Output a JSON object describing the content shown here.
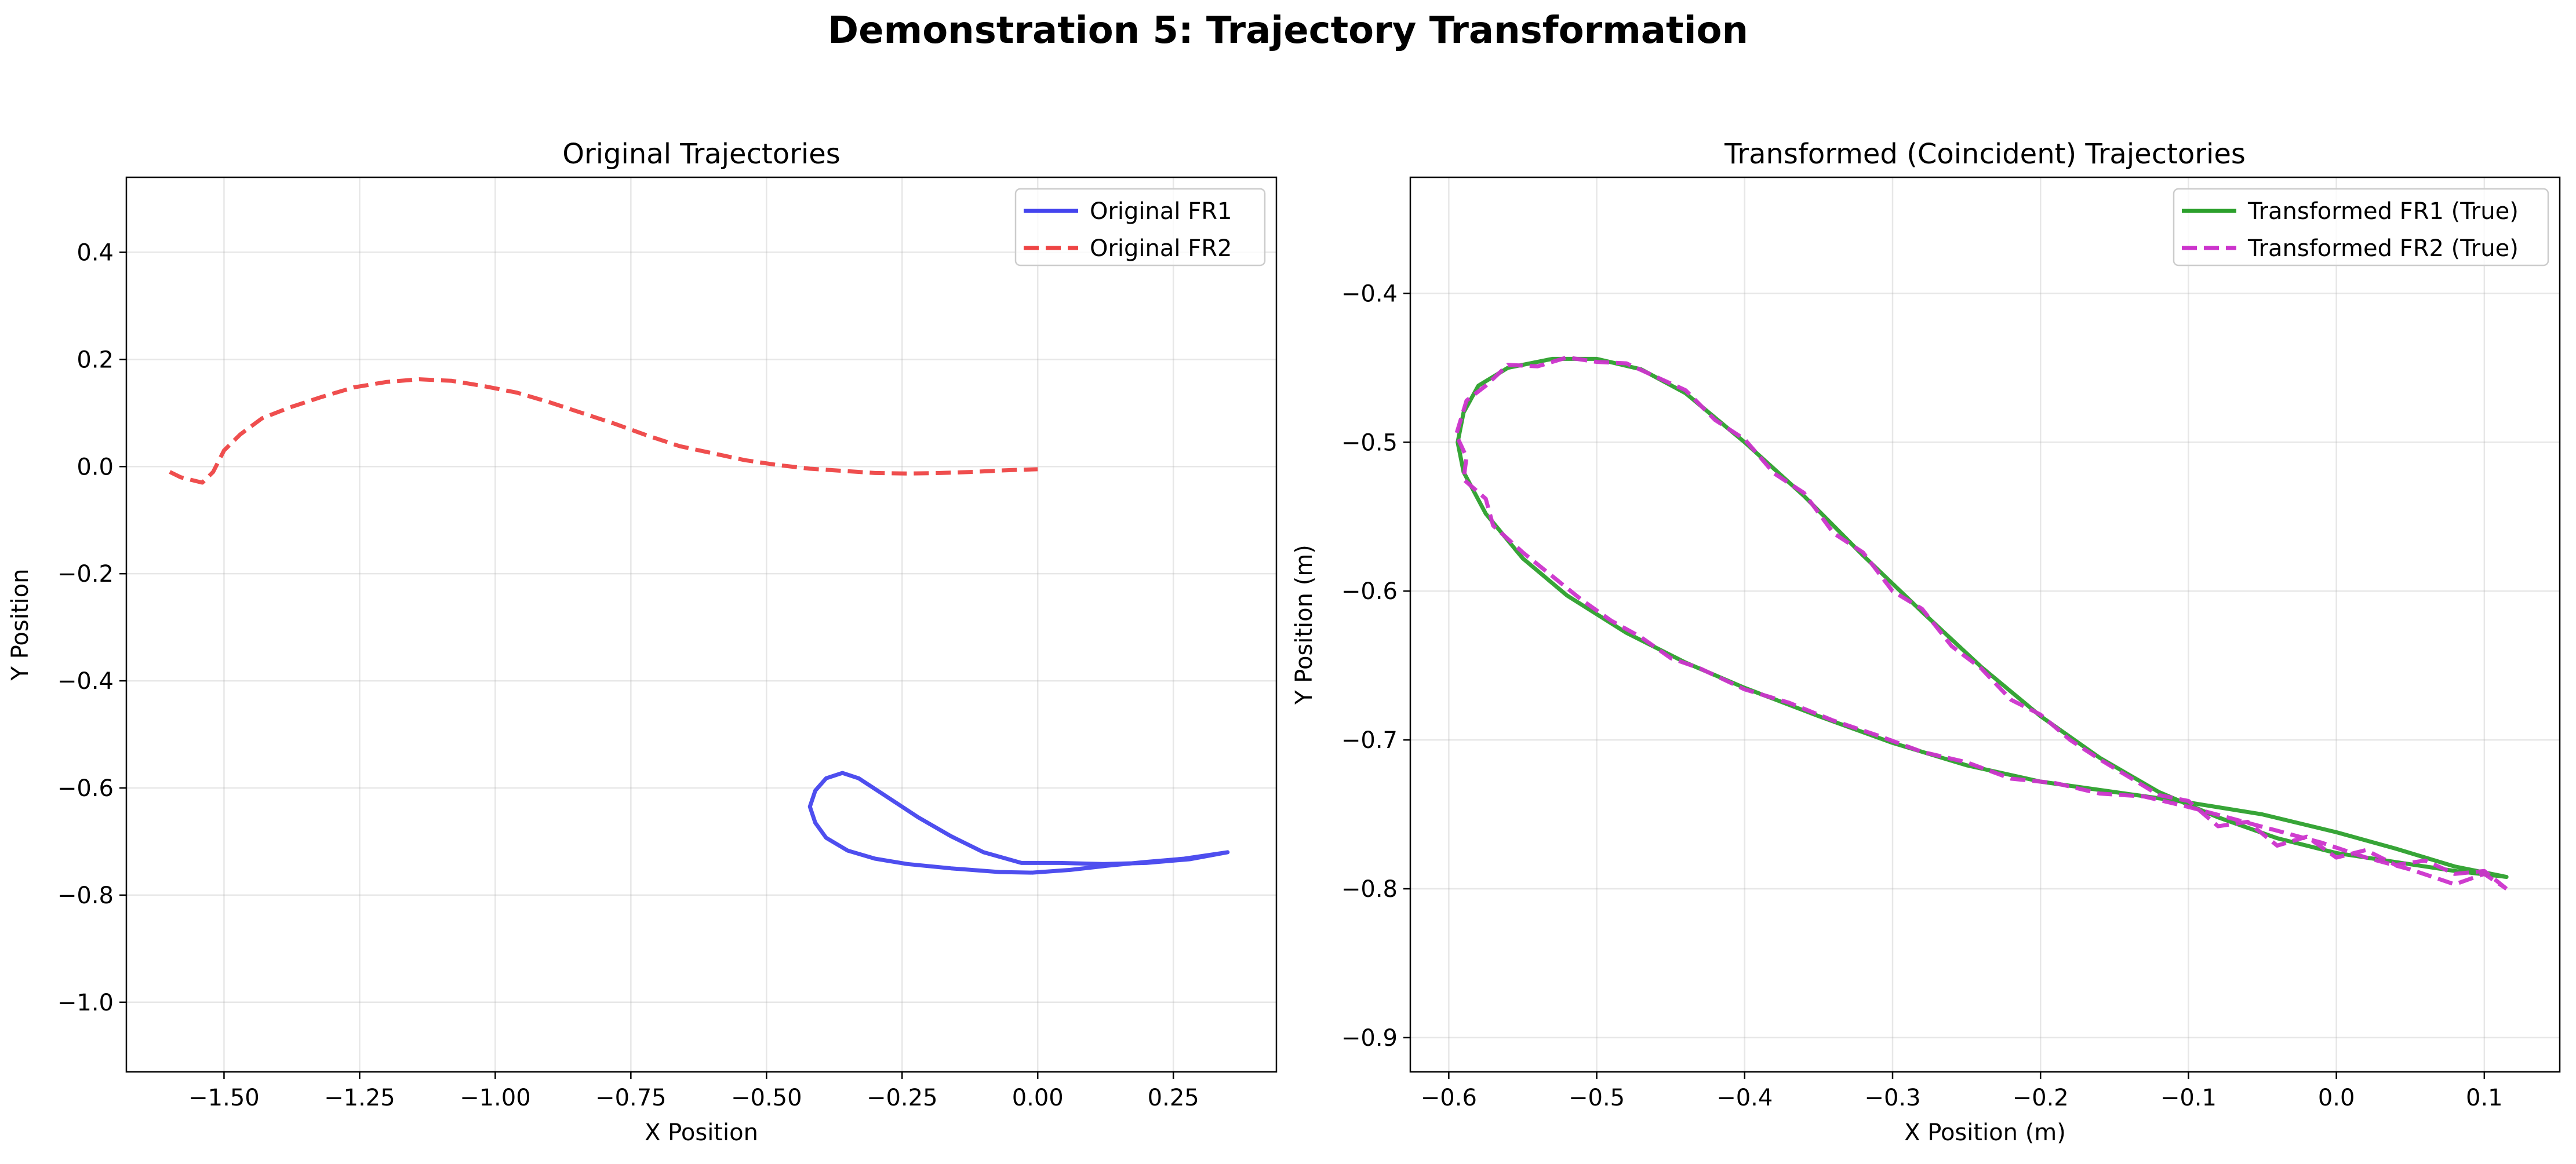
{
  "suptitle": "Demonstration 5: Trajectory Transformation",
  "chart_data": [
    {
      "type": "line",
      "title": "Original Trajectories",
      "xlabel": "X Position",
      "ylabel": "Y Position",
      "xlim": [
        -1.68,
        0.44
      ],
      "ylim": [
        -1.13,
        0.54
      ],
      "xticks": [
        -1.5,
        -1.25,
        -1.0,
        -0.75,
        -0.5,
        -0.25,
        0.0,
        0.25
      ],
      "xtick_labels": [
        "−1.50",
        "−1.25",
        "−1.00",
        "−0.75",
        "−0.50",
        "−0.25",
        "0.00",
        "0.25"
      ],
      "yticks": [
        0.4,
        0.2,
        0.0,
        -0.2,
        -0.4,
        -0.6,
        -0.8,
        -1.0
      ],
      "ytick_labels": [
        "0.4",
        "0.2",
        "0.0",
        "−0.2",
        "−0.4",
        "−0.6",
        "−0.8",
        "−1.0"
      ],
      "grid": true,
      "legend_position": "top-right",
      "series": [
        {
          "name": "Original FR1",
          "color": "#4444ee",
          "style": "solid",
          "points": [
            [
              0.35,
              -0.72
            ],
            [
              0.28,
              -0.733
            ],
            [
              0.2,
              -0.74
            ],
            [
              0.12,
              -0.742
            ],
            [
              0.04,
              -0.74
            ],
            [
              -0.03,
              -0.74
            ],
            [
              -0.1,
              -0.72
            ],
            [
              -0.16,
              -0.69
            ],
            [
              -0.22,
              -0.655
            ],
            [
              -0.28,
              -0.615
            ],
            [
              -0.33,
              -0.582
            ],
            [
              -0.36,
              -0.572
            ],
            [
              -0.39,
              -0.582
            ],
            [
              -0.41,
              -0.605
            ],
            [
              -0.42,
              -0.635
            ],
            [
              -0.41,
              -0.665
            ],
            [
              -0.39,
              -0.693
            ],
            [
              -0.35,
              -0.717
            ],
            [
              -0.3,
              -0.732
            ],
            [
              -0.24,
              -0.742
            ],
            [
              -0.16,
              -0.75
            ],
            [
              -0.07,
              -0.757
            ],
            [
              -0.01,
              -0.758
            ],
            [
              0.06,
              -0.753
            ],
            [
              0.13,
              -0.745
            ],
            [
              0.2,
              -0.738
            ],
            [
              0.27,
              -0.732
            ],
            [
              0.35,
              -0.72
            ]
          ]
        },
        {
          "name": "Original FR2",
          "color": "#ee4444",
          "style": "dashed",
          "points": [
            [
              -1.6,
              -0.01
            ],
            [
              -1.58,
              -0.02
            ],
            [
              -1.56,
              -0.025
            ],
            [
              -1.54,
              -0.03
            ],
            [
              -1.52,
              -0.01
            ],
            [
              -1.5,
              0.03
            ],
            [
              -1.47,
              0.06
            ],
            [
              -1.43,
              0.09
            ],
            [
              -1.38,
              0.11
            ],
            [
              -1.32,
              0.13
            ],
            [
              -1.26,
              0.148
            ],
            [
              -1.2,
              0.158
            ],
            [
              -1.14,
              0.163
            ],
            [
              -1.08,
              0.16
            ],
            [
              -1.02,
              0.15
            ],
            [
              -0.96,
              0.138
            ],
            [
              -0.9,
              0.12
            ],
            [
              -0.84,
              0.1
            ],
            [
              -0.78,
              0.08
            ],
            [
              -0.72,
              0.058
            ],
            [
              -0.66,
              0.038
            ],
            [
              -0.6,
              0.025
            ],
            [
              -0.54,
              0.012
            ],
            [
              -0.48,
              0.003
            ],
            [
              -0.42,
              -0.004
            ],
            [
              -0.36,
              -0.008
            ],
            [
              -0.3,
              -0.012
            ],
            [
              -0.24,
              -0.013
            ],
            [
              -0.18,
              -0.012
            ],
            [
              -0.12,
              -0.01
            ],
            [
              -0.06,
              -0.007
            ],
            [
              0.0,
              -0.005
            ]
          ]
        }
      ]
    },
    {
      "type": "line",
      "title": "Transformed (Coincident) Trajectories",
      "xlabel": "X Position (m)",
      "ylabel": "Y Position (m)",
      "xlim": [
        -0.626,
        0.151
      ],
      "ylim": [
        -0.923,
        -0.322
      ],
      "xticks": [
        -0.6,
        -0.5,
        -0.4,
        -0.3,
        -0.2,
        -0.1,
        0.0,
        0.1
      ],
      "xtick_labels": [
        "−0.6",
        "−0.5",
        "−0.4",
        "−0.3",
        "−0.2",
        "−0.1",
        "0.0",
        "0.1"
      ],
      "yticks": [
        -0.4,
        -0.5,
        -0.6,
        -0.7,
        -0.8,
        -0.9
      ],
      "ytick_labels": [
        "−0.4",
        "−0.5",
        "−0.6",
        "−0.7",
        "−0.8",
        "−0.9"
      ],
      "grid": true,
      "legend_position": "top-right",
      "series": [
        {
          "name": "Transformed FR1 (True)",
          "color": "#2ca02c",
          "style": "solid",
          "points": [
            [
              0.115,
              -0.792
            ],
            [
              0.08,
              -0.788
            ],
            [
              0.04,
              -0.782
            ],
            [
              0.0,
              -0.776
            ],
            [
              -0.04,
              -0.766
            ],
            [
              -0.08,
              -0.752
            ],
            [
              -0.12,
              -0.735
            ],
            [
              -0.16,
              -0.712
            ],
            [
              -0.2,
              -0.684
            ],
            [
              -0.24,
              -0.651
            ],
            [
              -0.28,
              -0.614
            ],
            [
              -0.32,
              -0.576
            ],
            [
              -0.36,
              -0.536
            ],
            [
              -0.4,
              -0.5
            ],
            [
              -0.44,
              -0.467
            ],
            [
              -0.47,
              -0.451
            ],
            [
              -0.5,
              -0.444
            ],
            [
              -0.53,
              -0.444
            ],
            [
              -0.56,
              -0.45
            ],
            [
              -0.58,
              -0.462
            ],
            [
              -0.59,
              -0.48
            ],
            [
              -0.594,
              -0.5
            ],
            [
              -0.59,
              -0.52
            ],
            [
              -0.575,
              -0.548
            ],
            [
              -0.55,
              -0.578
            ],
            [
              -0.52,
              -0.603
            ],
            [
              -0.48,
              -0.628
            ],
            [
              -0.44,
              -0.648
            ],
            [
              -0.4,
              -0.665
            ],
            [
              -0.35,
              -0.684
            ],
            [
              -0.3,
              -0.702
            ],
            [
              -0.25,
              -0.717
            ],
            [
              -0.2,
              -0.728
            ],
            [
              -0.15,
              -0.735
            ],
            [
              -0.1,
              -0.742
            ],
            [
              -0.05,
              -0.75
            ],
            [
              0.0,
              -0.762
            ],
            [
              0.04,
              -0.773
            ],
            [
              0.08,
              -0.785
            ],
            [
              0.115,
              -0.792
            ]
          ]
        },
        {
          "name": "Transformed FR2 (True)",
          "color": "#cc33cc",
          "style": "dashed",
          "points": [
            [
              0.115,
              -0.8
            ],
            [
              0.1,
              -0.788
            ],
            [
              0.08,
              -0.79
            ],
            [
              0.06,
              -0.781
            ],
            [
              0.04,
              -0.784
            ],
            [
              0.02,
              -0.774
            ],
            [
              0.0,
              -0.779
            ],
            [
              -0.02,
              -0.765
            ],
            [
              -0.04,
              -0.771
            ],
            [
              -0.06,
              -0.755
            ],
            [
              -0.08,
              -0.758
            ],
            [
              -0.1,
              -0.741
            ],
            [
              -0.12,
              -0.737
            ],
            [
              -0.14,
              -0.725
            ],
            [
              -0.16,
              -0.713
            ],
            [
              -0.18,
              -0.7
            ],
            [
              -0.2,
              -0.683
            ],
            [
              -0.22,
              -0.673
            ],
            [
              -0.24,
              -0.652
            ],
            [
              -0.26,
              -0.637
            ],
            [
              -0.28,
              -0.612
            ],
            [
              -0.3,
              -0.6
            ],
            [
              -0.32,
              -0.574
            ],
            [
              -0.34,
              -0.561
            ],
            [
              -0.36,
              -0.534
            ],
            [
              -0.38,
              -0.521
            ],
            [
              -0.4,
              -0.498
            ],
            [
              -0.42,
              -0.485
            ],
            [
              -0.44,
              -0.465
            ],
            [
              -0.46,
              -0.456
            ],
            [
              -0.48,
              -0.447
            ],
            [
              -0.5,
              -0.446
            ],
            [
              -0.52,
              -0.443
            ],
            [
              -0.54,
              -0.449
            ],
            [
              -0.56,
              -0.448
            ],
            [
              -0.575,
              -0.462
            ],
            [
              -0.588,
              -0.472
            ],
            [
              -0.595,
              -0.495
            ],
            [
              -0.588,
              -0.51
            ],
            [
              -0.59,
              -0.525
            ],
            [
              -0.575,
              -0.538
            ],
            [
              -0.57,
              -0.556
            ],
            [
              -0.55,
              -0.574
            ],
            [
              -0.53,
              -0.59
            ],
            [
              -0.51,
              -0.606
            ],
            [
              -0.49,
              -0.62
            ],
            [
              -0.47,
              -0.631
            ],
            [
              -0.45,
              -0.645
            ],
            [
              -0.43,
              -0.652
            ],
            [
              -0.4,
              -0.666
            ],
            [
              -0.37,
              -0.675
            ],
            [
              -0.34,
              -0.687
            ],
            [
              -0.31,
              -0.697
            ],
            [
              -0.28,
              -0.708
            ],
            [
              -0.25,
              -0.715
            ],
            [
              -0.22,
              -0.726
            ],
            [
              -0.19,
              -0.729
            ],
            [
              -0.16,
              -0.736
            ],
            [
              -0.13,
              -0.738
            ],
            [
              -0.1,
              -0.745
            ],
            [
              -0.07,
              -0.753
            ],
            [
              -0.04,
              -0.761
            ],
            [
              -0.01,
              -0.769
            ],
            [
              0.02,
              -0.779
            ],
            [
              0.05,
              -0.787
            ],
            [
              0.08,
              -0.797
            ],
            [
              0.1,
              -0.79
            ],
            [
              0.115,
              -0.8
            ]
          ]
        }
      ]
    }
  ]
}
